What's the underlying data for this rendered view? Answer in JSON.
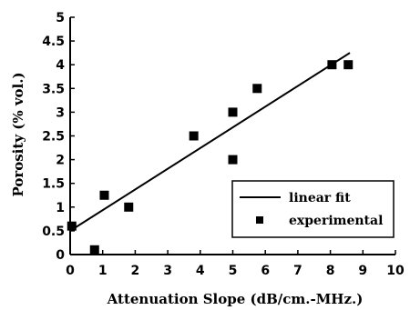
{
  "chart_data": {
    "type": "scatter",
    "title": "",
    "xlabel": "Attenuation Slope (dB/cm.-MHz.)",
    "ylabel": "Porosity (% vol.)",
    "xlim": [
      0,
      10
    ],
    "ylim": [
      0,
      5
    ],
    "x_ticks": [
      "0",
      "1",
      "2",
      "3",
      "4",
      "5",
      "6",
      "7",
      "8",
      "9",
      "10"
    ],
    "y_ticks": [
      "0",
      "0.5",
      "1",
      "1.5",
      "2",
      "2.5",
      "3",
      "3.5",
      "4",
      "4.5",
      "5"
    ],
    "grid": false,
    "legend_position": "bottom-right",
    "series": [
      {
        "name": "linear fit",
        "kind": "line",
        "color": "#000000",
        "x": [
          0,
          8.6
        ],
        "y": [
          0.5,
          4.25
        ]
      },
      {
        "name": "experimental",
        "kind": "scatter",
        "marker": "square",
        "color": "#000000",
        "x": [
          0.05,
          0.75,
          1.05,
          1.8,
          3.8,
          5.0,
          5.0,
          5.75,
          8.05,
          8.55
        ],
        "y": [
          0.6,
          0.1,
          1.25,
          1.0,
          2.5,
          3.0,
          2.0,
          3.5,
          4.0,
          4.0
        ]
      }
    ]
  }
}
